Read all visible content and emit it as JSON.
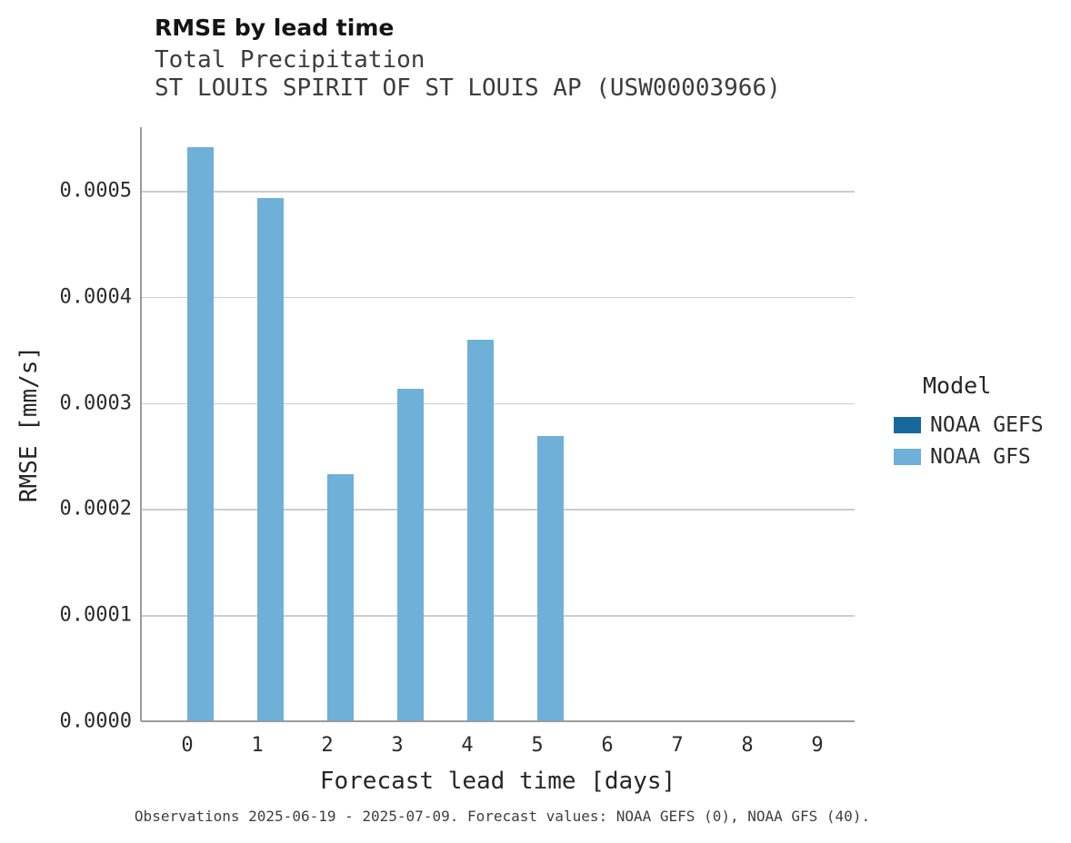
{
  "header": {
    "title": "RMSE by lead time",
    "subtitle": "Total Precipitation",
    "station": "ST LOUIS SPIRIT OF ST LOUIS AP (USW00003966)"
  },
  "axes": {
    "xlabel": "Forecast lead time [days]",
    "ylabel": "RMSE [mm/s]"
  },
  "legend": {
    "title": "Model",
    "entries": [
      {
        "label": "NOAA GEFS",
        "color": "#17689c"
      },
      {
        "label": "NOAA GFS",
        "color": "#6fb0d8"
      }
    ]
  },
  "caption": "Observations 2025-06-19 - 2025-07-09. Forecast values: NOAA GEFS (0), NOAA GFS (40).",
  "colors": {
    "gridline": "#cccccc",
    "axis_line": "#9b9b9b",
    "gefs": "#17689c",
    "gfs": "#6fb0d8"
  },
  "chart_data": {
    "type": "bar",
    "title": "RMSE by lead time",
    "subtitle": "Total Precipitation",
    "station": "ST LOUIS SPIRIT OF ST LOUIS AP (USW00003966)",
    "xlabel": "Forecast lead time [days]",
    "ylabel": "RMSE [mm/s]",
    "categories": [
      "0",
      "1",
      "2",
      "3",
      "4",
      "5",
      "6",
      "7",
      "8",
      "9"
    ],
    "series": [
      {
        "name": "NOAA GEFS",
        "color": "#17689c",
        "values": [
          0,
          0,
          0,
          0,
          0,
          0,
          0,
          0,
          0,
          0
        ]
      },
      {
        "name": "NOAA GFS",
        "color": "#6fb0d8",
        "values": [
          0.000541,
          0.000493,
          0.000233,
          0.000313,
          0.00036,
          0.000269,
          0,
          0,
          0,
          0
        ]
      }
    ],
    "ylim": [
      0,
      0.00056
    ],
    "yticks": [
      0,
      0.0001,
      0.0002,
      0.0003,
      0.0004,
      0.0005
    ],
    "ytick_labels": [
      "0.0000",
      "0.0001",
      "0.0002",
      "0.0003",
      "0.0004",
      "0.0005"
    ],
    "grid": "horizontal",
    "legend_position": "right"
  }
}
